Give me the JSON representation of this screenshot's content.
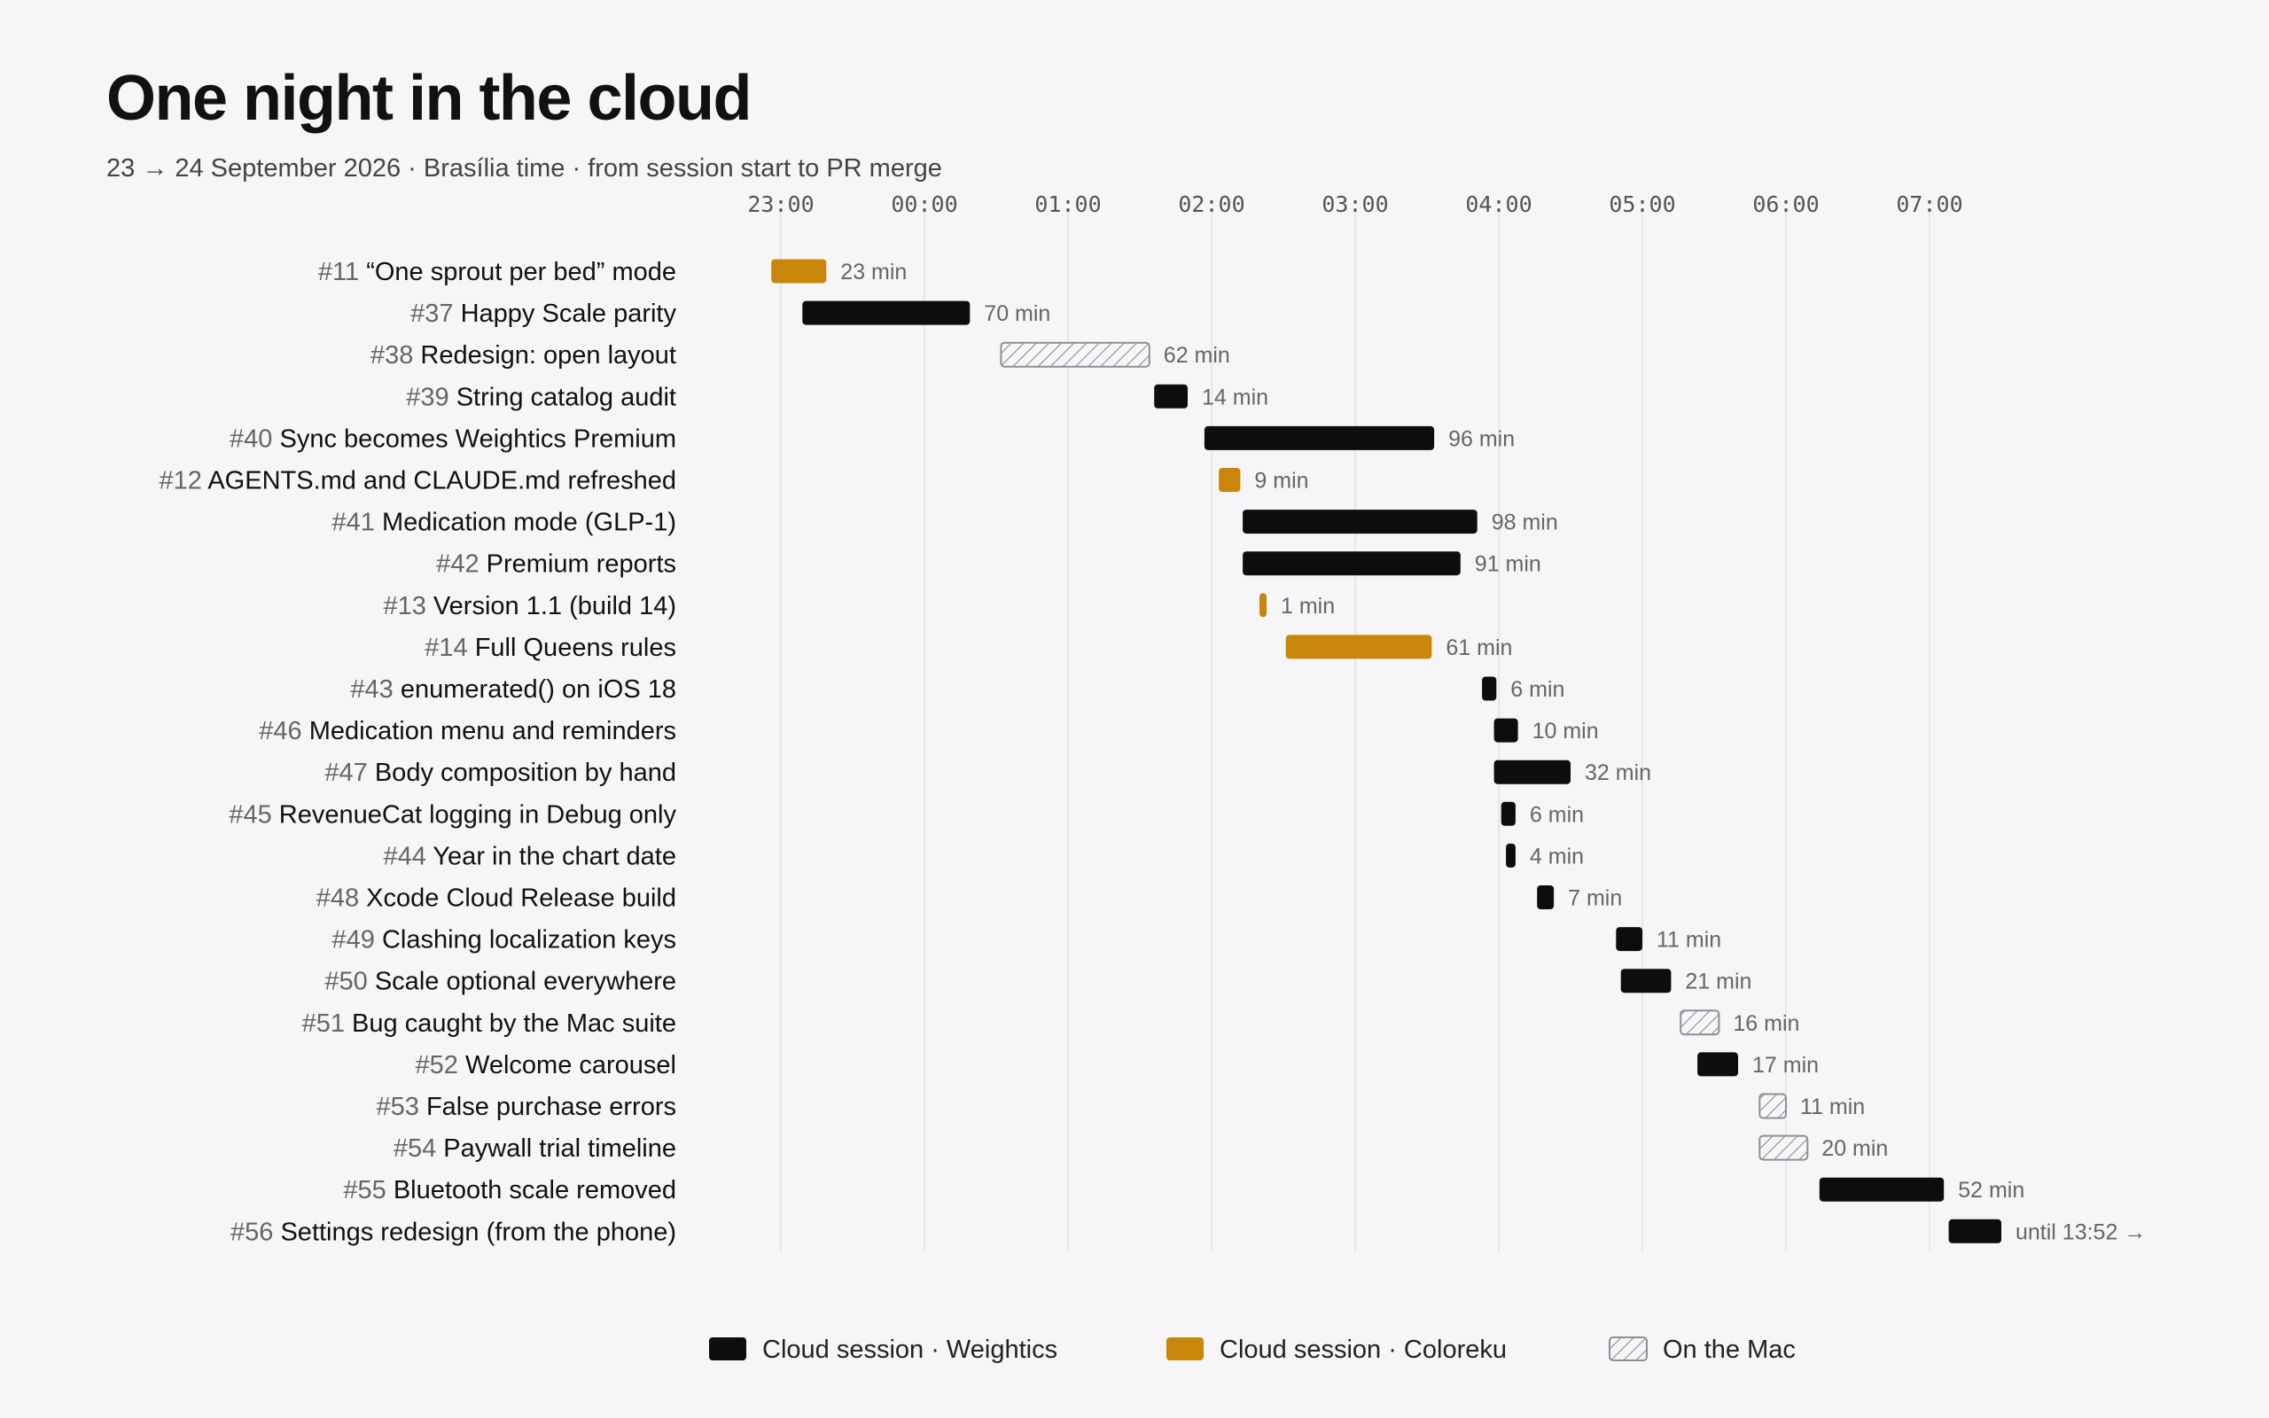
{
  "header": {
    "title": "One night in the cloud",
    "subtitle": "23 → 24 September 2026 · Brasília time · from session start to PR merge"
  },
  "colors": {
    "weightics": "#0d0d10",
    "coloreku": "#c8860a",
    "mac_hatch": "#999999",
    "grid": "#e2e1e6",
    "background": "#f6f5f8"
  },
  "chart_data": {
    "type": "gantt",
    "x_ticks": [
      "23:00",
      "00:00",
      "01:00",
      "02:00",
      "03:00",
      "04:00",
      "05:00",
      "06:00",
      "07:00"
    ],
    "xlim": [
      "22:56",
      "08:28"
    ],
    "grid": true,
    "legend_position": "bottom-center",
    "legend": [
      {
        "key": "weightics",
        "label": "Cloud session · Weightics"
      },
      {
        "key": "coloreku",
        "label": "Cloud session · Coloreku"
      },
      {
        "key": "mac",
        "label": "On the Mac"
      }
    ],
    "tasks": [
      {
        "num": "#11",
        "label": "“One sprout per bed” mode",
        "start": "22:56",
        "duration_min": 23,
        "duration_label": "23 min",
        "kind": "coloreku"
      },
      {
        "num": "#37",
        "label": "Happy Scale parity",
        "start": "23:09",
        "duration_min": 70,
        "duration_label": "70 min",
        "kind": "weightics"
      },
      {
        "num": "#38",
        "label": "Redesign: open layout",
        "start": "00:32",
        "duration_min": 62,
        "duration_label": "62 min",
        "kind": "mac"
      },
      {
        "num": "#39",
        "label": "String catalog audit",
        "start": "01:36",
        "duration_min": 14,
        "duration_label": "14 min",
        "kind": "weightics"
      },
      {
        "num": "#40",
        "label": "Sync becomes Weightics Premium",
        "start": "01:57",
        "duration_min": 96,
        "duration_label": "96 min",
        "kind": "weightics"
      },
      {
        "num": "#12",
        "label": "AGENTS.md and CLAUDE.md refreshed",
        "start": "02:03",
        "duration_min": 9,
        "duration_label": "9 min",
        "kind": "coloreku"
      },
      {
        "num": "#41",
        "label": "Medication mode (GLP-1)",
        "start": "02:13",
        "duration_min": 98,
        "duration_label": "98 min",
        "kind": "weightics"
      },
      {
        "num": "#42",
        "label": "Premium reports",
        "start": "02:13",
        "duration_min": 91,
        "duration_label": "91 min",
        "kind": "weightics"
      },
      {
        "num": "#13",
        "label": "Version 1.1 (build 14)",
        "start": "02:20",
        "duration_min": 1,
        "duration_label": "1 min",
        "kind": "coloreku"
      },
      {
        "num": "#14",
        "label": "Full Queens rules",
        "start": "02:31",
        "duration_min": 61,
        "duration_label": "61 min",
        "kind": "coloreku"
      },
      {
        "num": "#43",
        "label": "enumerated() on iOS 18",
        "start": "03:53",
        "duration_min": 6,
        "duration_label": "6 min",
        "kind": "weightics"
      },
      {
        "num": "#46",
        "label": "Medication menu and reminders",
        "start": "03:58",
        "duration_min": 10,
        "duration_label": "10 min",
        "kind": "weightics"
      },
      {
        "num": "#47",
        "label": "Body composition by hand",
        "start": "03:58",
        "duration_min": 32,
        "duration_label": "32 min",
        "kind": "weightics"
      },
      {
        "num": "#45",
        "label": "RevenueCat logging in Debug only",
        "start": "04:01",
        "duration_min": 6,
        "duration_label": "6 min",
        "kind": "weightics"
      },
      {
        "num": "#44",
        "label": "Year in the chart date",
        "start": "04:03",
        "duration_min": 4,
        "duration_label": "4 min",
        "kind": "weightics"
      },
      {
        "num": "#48",
        "label": "Xcode Cloud Release build",
        "start": "04:16",
        "duration_min": 7,
        "duration_label": "7 min",
        "kind": "weightics"
      },
      {
        "num": "#49",
        "label": "Clashing localization keys",
        "start": "04:49",
        "duration_min": 11,
        "duration_label": "11 min",
        "kind": "weightics"
      },
      {
        "num": "#50",
        "label": "Scale optional everywhere",
        "start": "04:51",
        "duration_min": 21,
        "duration_label": "21 min",
        "kind": "weightics"
      },
      {
        "num": "#51",
        "label": "Bug caught by the Mac suite",
        "start": "05:16",
        "duration_min": 16,
        "duration_label": "16 min",
        "kind": "mac"
      },
      {
        "num": "#52",
        "label": "Welcome carousel",
        "start": "05:23",
        "duration_min": 17,
        "duration_label": "17 min",
        "kind": "weightics"
      },
      {
        "num": "#53",
        "label": "False purchase errors",
        "start": "05:49",
        "duration_min": 11,
        "duration_label": "11 min",
        "kind": "mac"
      },
      {
        "num": "#54",
        "label": "Paywall trial timeline",
        "start": "05:49",
        "duration_min": 20,
        "duration_label": "20 min",
        "kind": "mac"
      },
      {
        "num": "#55",
        "label": "Bluetooth scale removed",
        "start": "06:14",
        "duration_min": 52,
        "duration_label": "52 min",
        "kind": "weightics"
      },
      {
        "num": "#56",
        "label": "Settings redesign (from the phone)",
        "start": "07:08",
        "duration_min": 22,
        "duration_label": "until 13:52 →",
        "kind": "weightics"
      }
    ]
  }
}
